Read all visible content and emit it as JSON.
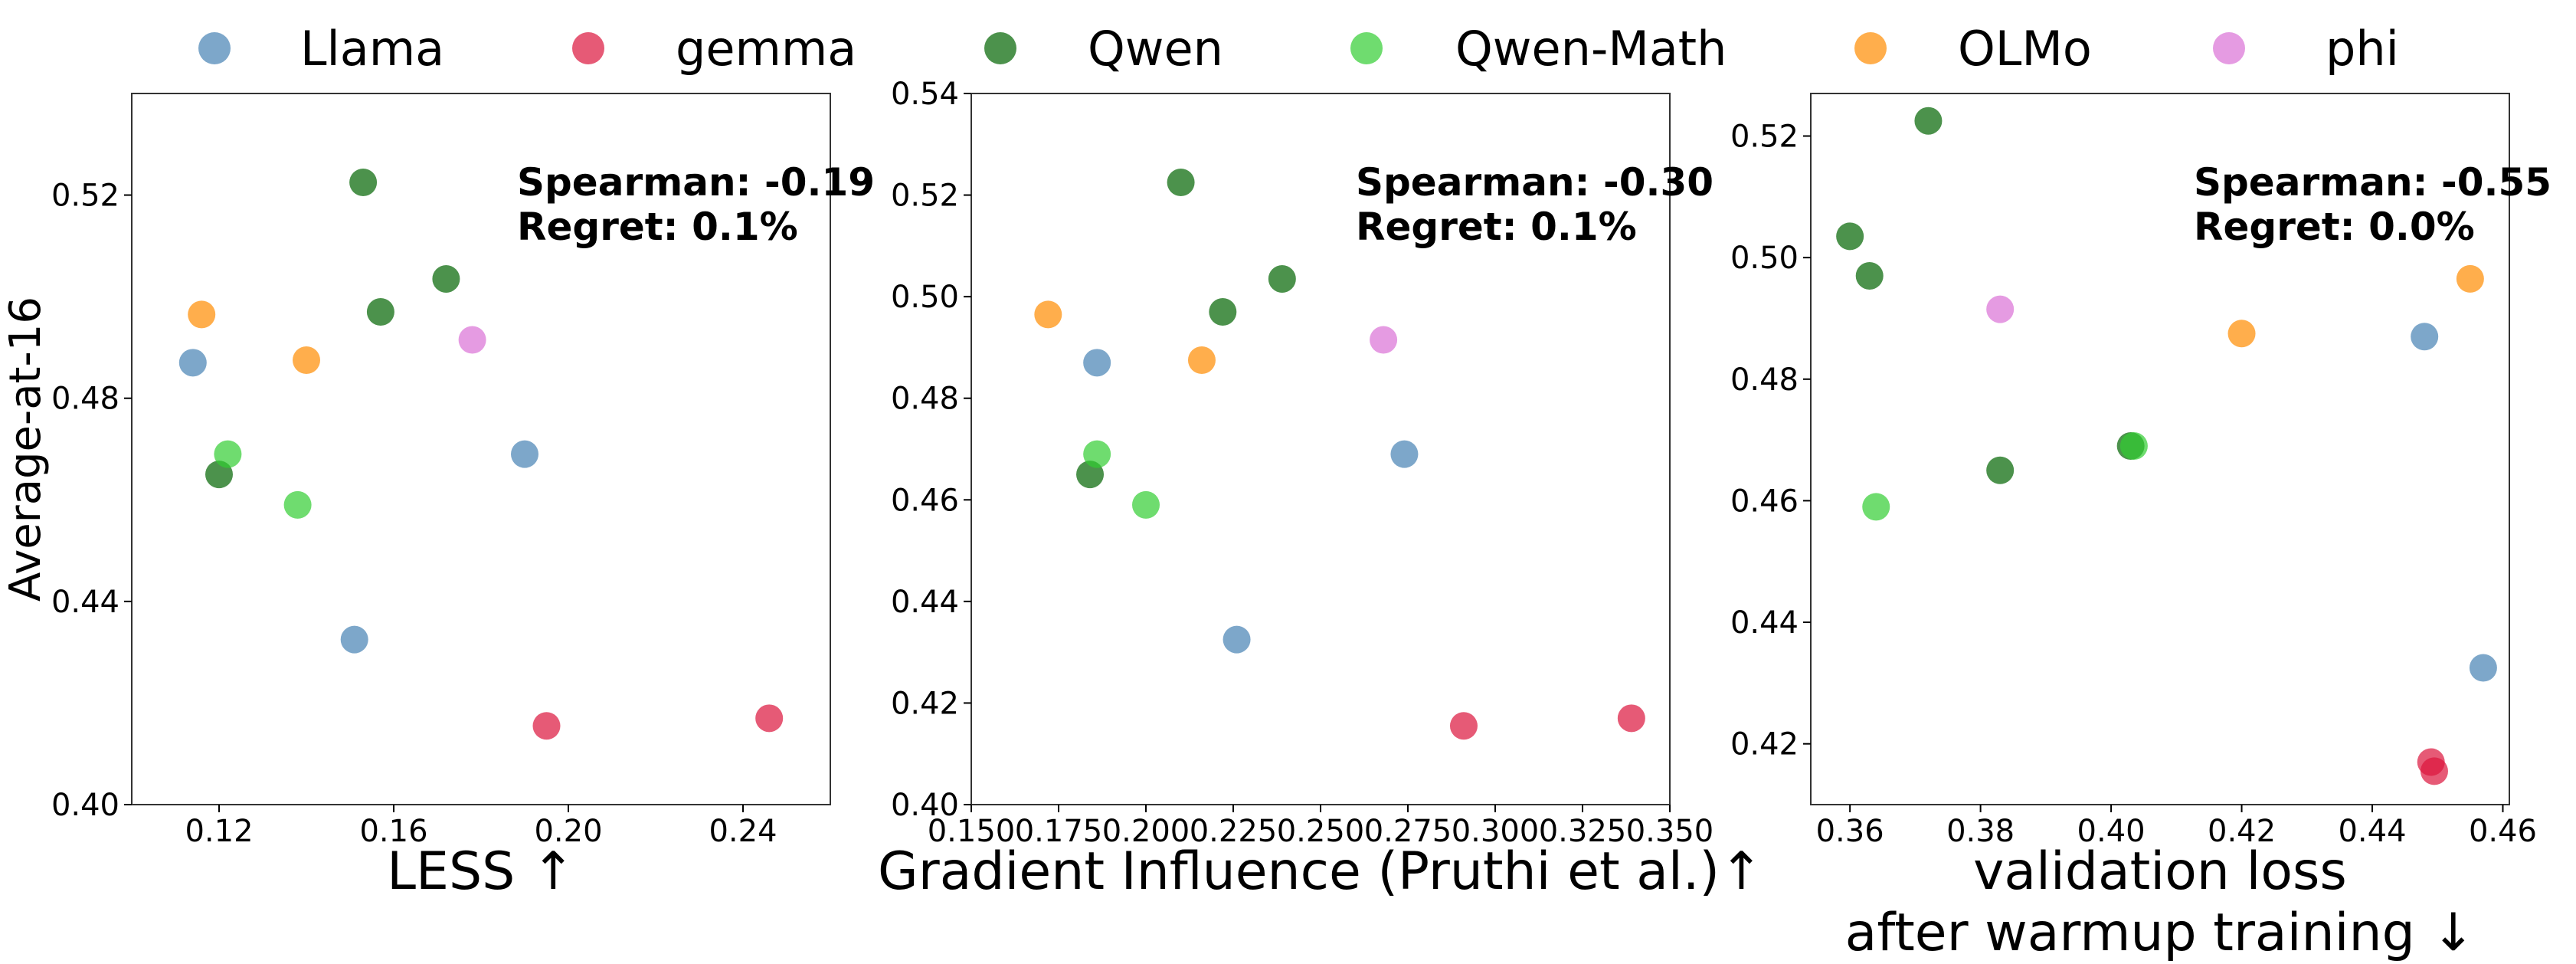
{
  "legend": [
    {
      "name": "Llama",
      "color": "#4682b4"
    },
    {
      "name": "gemma",
      "color": "#dc143c"
    },
    {
      "name": "Qwen",
      "color": "#006400"
    },
    {
      "name": "Qwen-Math",
      "color": "#32cd32"
    },
    {
      "name": "OLMo",
      "color": "#ff8c00"
    },
    {
      "name": "phi",
      "color": "#da70d6"
    }
  ],
  "point_opacity": 0.7,
  "chart_data": [
    {
      "type": "scatter",
      "xlabel": "LESS ↑",
      "ylabel": "Average-at-16",
      "xlim": [
        0.1,
        0.26
      ],
      "ylim": [
        0.4,
        0.54
      ],
      "xticks": [
        0.12,
        0.16,
        0.2,
        0.24
      ],
      "xticklabels": [
        "0.12",
        "0.16",
        "0.20",
        "0.24"
      ],
      "yticks": [
        0.4,
        0.44,
        0.48,
        0.52
      ],
      "yticklabels": [
        "0.40",
        "0.44",
        "0.48",
        "0.52"
      ],
      "annotation": [
        "Spearman: -0.19",
        "Regret: 0.1%"
      ],
      "series": [
        {
          "name": "Llama",
          "points": [
            [
              0.114,
              0.487
            ],
            [
              0.151,
              0.4325
            ],
            [
              0.19,
              0.469
            ]
          ]
        },
        {
          "name": "gemma",
          "points": [
            [
              0.195,
              0.4155
            ],
            [
              0.246,
              0.417
            ]
          ]
        },
        {
          "name": "Qwen",
          "points": [
            [
              0.153,
              0.5225
            ],
            [
              0.157,
              0.497
            ],
            [
              0.172,
              0.5035
            ],
            [
              0.12,
              0.465
            ]
          ]
        },
        {
          "name": "Qwen-Math",
          "points": [
            [
              0.122,
              0.469
            ],
            [
              0.138,
              0.459
            ]
          ]
        },
        {
          "name": "OLMo",
          "points": [
            [
              0.116,
              0.4965
            ],
            [
              0.14,
              0.4875
            ]
          ]
        },
        {
          "name": "phi",
          "points": [
            [
              0.178,
              0.4915
            ]
          ]
        }
      ]
    },
    {
      "type": "scatter",
      "xlabel": "Gradient Influence (Pruthi et al.)↑",
      "ylabel": "",
      "xlim": [
        0.15,
        0.35
      ],
      "ylim": [
        0.4,
        0.54
      ],
      "xticks": [
        0.15,
        0.175,
        0.2,
        0.225,
        0.25,
        0.275,
        0.3,
        0.325,
        0.35
      ],
      "xticklabels": [
        "0.150",
        "0.175",
        "0.200",
        "0.225",
        "0.250",
        "0.275",
        "0.300",
        "0.325",
        "0.350"
      ],
      "yticks": [
        0.4,
        0.42,
        0.44,
        0.46,
        0.48,
        0.5,
        0.52,
        0.54
      ],
      "yticklabels": [
        "0.40",
        "0.42",
        "0.44",
        "0.46",
        "0.48",
        "0.50",
        "0.52",
        "0.54"
      ],
      "annotation": [
        "Spearman: -0.30",
        "Regret: 0.1%"
      ],
      "series": [
        {
          "name": "Llama",
          "points": [
            [
              0.186,
              0.487
            ],
            [
              0.226,
              0.4325
            ],
            [
              0.274,
              0.469
            ]
          ]
        },
        {
          "name": "gemma",
          "points": [
            [
              0.291,
              0.4155
            ],
            [
              0.339,
              0.417
            ]
          ]
        },
        {
          "name": "Qwen",
          "points": [
            [
              0.21,
              0.5225
            ],
            [
              0.222,
              0.497
            ],
            [
              0.239,
              0.5035
            ],
            [
              0.184,
              0.465
            ]
          ]
        },
        {
          "name": "Qwen-Math",
          "points": [
            [
              0.186,
              0.469
            ],
            [
              0.2,
              0.459
            ]
          ]
        },
        {
          "name": "OLMo",
          "points": [
            [
              0.172,
              0.4965
            ],
            [
              0.216,
              0.4875
            ]
          ]
        },
        {
          "name": "phi",
          "points": [
            [
              0.268,
              0.4915
            ]
          ]
        }
      ]
    },
    {
      "type": "scatter",
      "xlabel": "validation loss\nafter warmup training ↓",
      "ylabel": "",
      "xlim": [
        0.354,
        0.461
      ],
      "ylim": [
        0.41,
        0.527
      ],
      "xticks": [
        0.36,
        0.38,
        0.4,
        0.42,
        0.44,
        0.46
      ],
      "xticklabels": [
        "0.36",
        "0.38",
        "0.40",
        "0.42",
        "0.44",
        "0.46"
      ],
      "yticks": [
        0.42,
        0.44,
        0.46,
        0.48,
        0.5,
        0.52
      ],
      "yticklabels": [
        "0.42",
        "0.44",
        "0.46",
        "0.48",
        "0.50",
        "0.52"
      ],
      "annotation": [
        "Spearman: -0.55",
        "Regret: 0.0%"
      ],
      "series": [
        {
          "name": "Llama",
          "points": [
            [
              0.448,
              0.487
            ],
            [
              0.457,
              0.4325
            ]
          ]
        },
        {
          "name": "gemma",
          "points": [
            [
              0.449,
              0.417
            ],
            [
              0.4495,
              0.4155
            ]
          ]
        },
        {
          "name": "Qwen",
          "points": [
            [
              0.372,
              0.5225
            ],
            [
              0.36,
              0.5035
            ],
            [
              0.363,
              0.497
            ],
            [
              0.383,
              0.465
            ],
            [
              0.403,
              0.469
            ]
          ]
        },
        {
          "name": "Qwen-Math",
          "points": [
            [
              0.364,
              0.459
            ],
            [
              0.4035,
              0.469
            ]
          ]
        },
        {
          "name": "OLMo",
          "points": [
            [
              0.455,
              0.4965
            ],
            [
              0.42,
              0.4875
            ]
          ]
        },
        {
          "name": "phi",
          "points": [
            [
              0.383,
              0.4915
            ]
          ]
        }
      ]
    }
  ]
}
